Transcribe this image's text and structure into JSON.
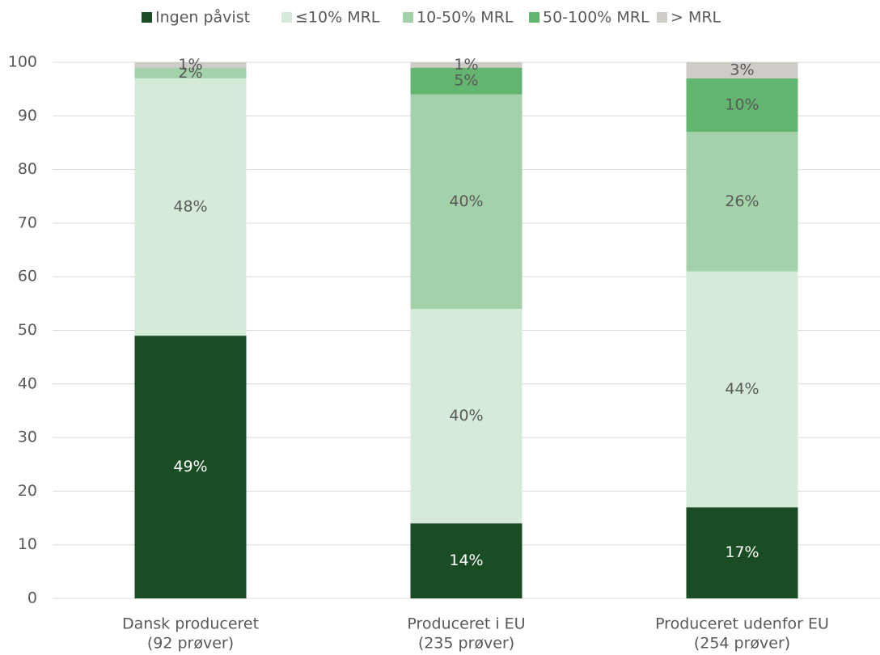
{
  "chart_data": {
    "type": "stacked_bar",
    "categories": [
      [
        "Dansk produceret",
        "(92 prøver)"
      ],
      [
        "Produceret i EU",
        "(235 prøver)"
      ],
      [
        "Produceret udenfor EU",
        "(254 prøver)"
      ]
    ],
    "series": [
      {
        "name": "Ingen påvist",
        "color": "#1b4d24",
        "values": [
          49,
          14,
          17
        ],
        "value_labels": [
          "49%",
          "14%",
          "17%"
        ]
      },
      {
        "name": "≤10% MRL",
        "color": "#d5ead8",
        "values": [
          48,
          40,
          44
        ],
        "value_labels": [
          "48%",
          "40%",
          "44%"
        ]
      },
      {
        "name": "10-50% MRL",
        "color": "#a3d1a9",
        "values": [
          2,
          40,
          26
        ],
        "value_labels": [
          "2%",
          "40%",
          "26%"
        ]
      },
      {
        "name": "50-100% MRL",
        "color": "#63b570",
        "values": [
          0,
          5,
          10
        ],
        "value_labels": [
          null,
          "5%",
          "10%"
        ]
      },
      {
        "name": "> MRL",
        "color": "#cfcbc6",
        "values": [
          1,
          1,
          3
        ],
        "value_labels": [
          "1%",
          "1%",
          "3%"
        ]
      }
    ],
    "ylim": [
      0,
      100
    ],
    "yticks": [
      0,
      10,
      20,
      30,
      40,
      50,
      60,
      70,
      80,
      90,
      100
    ],
    "grid": true,
    "legend": "top"
  }
}
